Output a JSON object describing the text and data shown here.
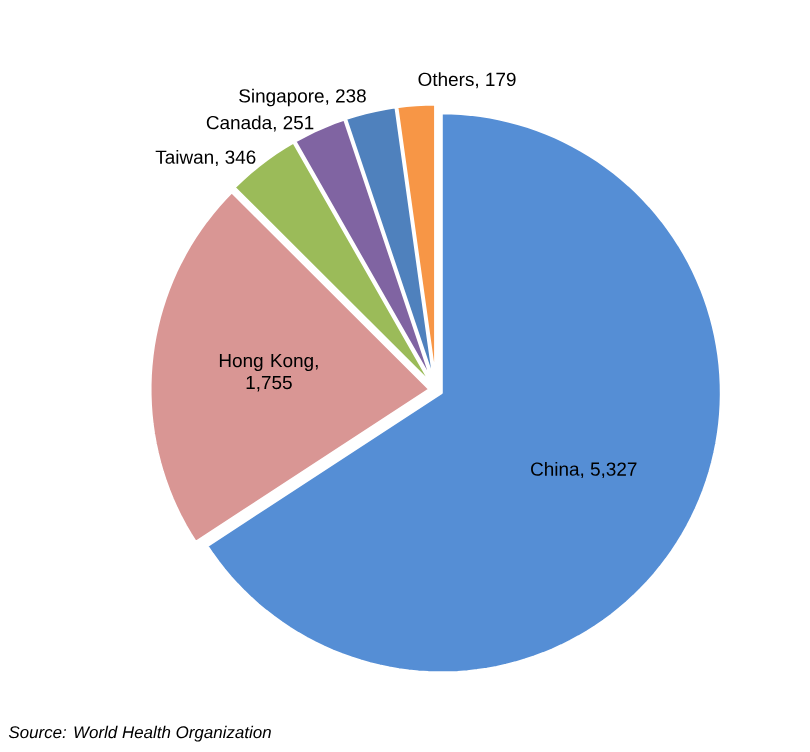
{
  "chart_data": {
    "type": "pie",
    "categories": [
      "China",
      "Hong Kong",
      "Taiwan",
      "Canada",
      "Singapore",
      "Others"
    ],
    "values": [
      5327,
      1755,
      346,
      251,
      238,
      179
    ],
    "value_labels": [
      ", 5,327",
      ", 1,755",
      ", 346",
      ", 251",
      ", 238",
      ", 179"
    ],
    "colors": [
      "#558ed5",
      "#d99694",
      "#9bbb59",
      "#8064a2",
      "#4f81bd",
      "#f79646"
    ],
    "annotations": [
      "Source: World Health Organization"
    ]
  }
}
